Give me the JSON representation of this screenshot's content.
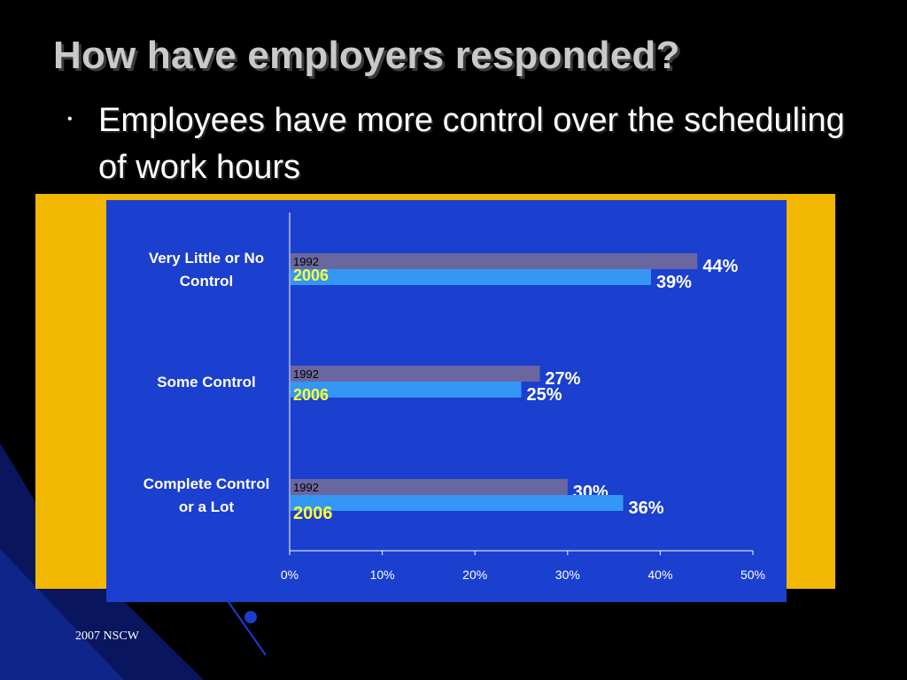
{
  "slide": {
    "title": "How have employers responded?",
    "bullet": "Employees have more control over the scheduling of work hours",
    "footer": "2007 NSCW"
  },
  "colors": {
    "background": "#000000",
    "frame": "#f2b700",
    "plot_area": "#1b3fcf",
    "series_1992": "#6a67a0",
    "series_2006": "#3497f5",
    "label_1992": "#000000",
    "label_2006": "#ffff33"
  },
  "chart_data": {
    "type": "bar",
    "orientation": "horizontal",
    "categories": [
      "Very Little or No Control",
      "Some Control",
      "Complete Control or a Lot"
    ],
    "category_label_lines": [
      [
        "Very Little or No",
        "Control"
      ],
      [
        "Some Control"
      ],
      [
        "Complete Control",
        "or a Lot"
      ]
    ],
    "series": [
      {
        "name": "1992",
        "values": [
          44,
          27,
          30
        ]
      },
      {
        "name": "2006",
        "values": [
          39,
          25,
          36
        ]
      }
    ],
    "data_labels": [
      [
        "44%",
        "27%",
        "30%"
      ],
      [
        "39%",
        "25%",
        "36%"
      ]
    ],
    "xlim": [
      0,
      50
    ],
    "x_ticks": [
      0,
      10,
      20,
      30,
      40,
      50
    ],
    "x_tick_labels": [
      "0%",
      "10%",
      "20%",
      "30%",
      "40%",
      "50%"
    ],
    "grid": false
  }
}
